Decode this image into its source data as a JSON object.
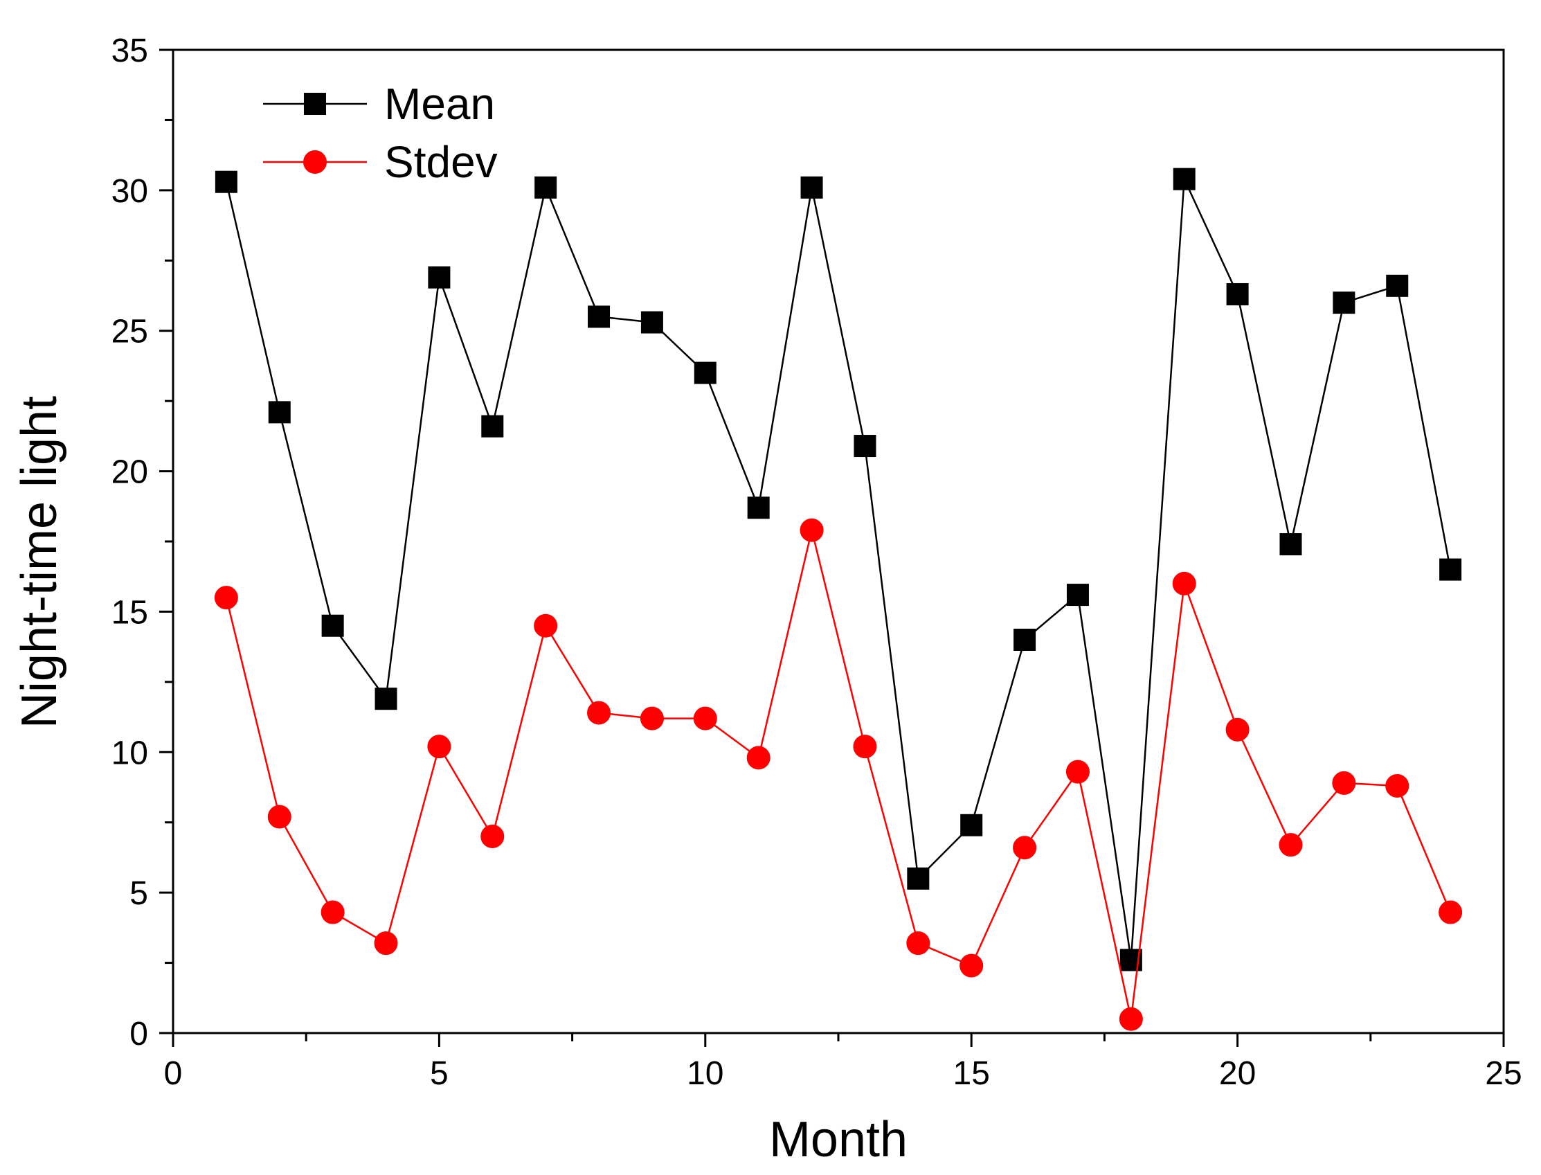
{
  "chart_data": {
    "type": "line",
    "title": "",
    "xlabel": "Month",
    "ylabel": "Night-time light",
    "xlim": [
      0,
      25
    ],
    "ylim": [
      0,
      35
    ],
    "x_major_ticks": [
      0,
      5,
      10,
      15,
      20,
      25
    ],
    "x_tick_labels": [
      "0",
      "5",
      "10",
      "15",
      "20",
      "25"
    ],
    "y_major_ticks": [
      0,
      5,
      10,
      15,
      20,
      25,
      30,
      35
    ],
    "y_tick_labels": [
      "0",
      "5",
      "10",
      "15",
      "20",
      "25",
      "30",
      "35"
    ],
    "grid": false,
    "legend_position": "top-left",
    "series": [
      {
        "name": "Mean",
        "color": "#000000",
        "marker": "square",
        "x": [
          1,
          2,
          3,
          4,
          5,
          6,
          7,
          8,
          9,
          10,
          11,
          12,
          13,
          14,
          15,
          16,
          17,
          18,
          19,
          20,
          21,
          22,
          23,
          24
        ],
        "values": [
          30.3,
          22.1,
          14.5,
          11.9,
          26.9,
          21.6,
          30.1,
          25.5,
          25.3,
          23.5,
          18.7,
          30.1,
          20.9,
          5.5,
          7.4,
          14.0,
          15.6,
          2.6,
          30.4,
          26.3,
          17.4,
          26.0,
          26.6,
          16.5
        ]
      },
      {
        "name": "Stdev",
        "color": "#ff0000",
        "marker": "circle",
        "x": [
          1,
          2,
          3,
          4,
          5,
          6,
          7,
          8,
          9,
          10,
          11,
          12,
          13,
          14,
          15,
          16,
          17,
          18,
          19,
          20,
          21,
          22,
          23,
          24
        ],
        "values": [
          15.5,
          7.7,
          4.3,
          3.2,
          10.2,
          7.0,
          14.5,
          11.4,
          11.2,
          11.2,
          9.8,
          17.9,
          10.2,
          3.2,
          2.4,
          6.6,
          9.3,
          0.5,
          16.0,
          10.8,
          6.7,
          8.9,
          8.8,
          4.3
        ]
      }
    ]
  }
}
